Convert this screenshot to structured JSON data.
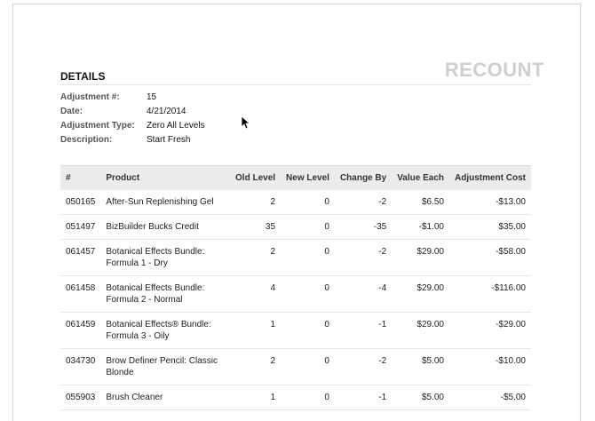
{
  "doc_type": "RECOUNT",
  "details": {
    "heading": "DETAILS",
    "fields": [
      {
        "label": "Adjustment #:",
        "value": "15"
      },
      {
        "label": "Date:",
        "value": "4/21/2014"
      },
      {
        "label": "Adjustment Type:",
        "value": "Zero All Levels"
      },
      {
        "label": "Description:",
        "value": "Start Fresh"
      }
    ]
  },
  "table": {
    "headers": [
      "#",
      "Product",
      "Old Level",
      "New Level",
      "Change By",
      "Value Each",
      "Adjustment Cost"
    ],
    "rows": [
      {
        "id": "050165",
        "product": "After-Sun Replenishing Gel",
        "old": "2",
        "new": "0",
        "change": "-2",
        "value": "$6.50",
        "cost": "-$13.00"
      },
      {
        "id": "051497",
        "product": "BizBuilder Bucks Credit",
        "old": "35",
        "new": "0",
        "change": "-35",
        "value": "-$1.00",
        "cost": "$35.00"
      },
      {
        "id": "061457",
        "product": "Botanical Effects Bundle: Formula 1 - Dry",
        "old": "2",
        "new": "0",
        "change": "-2",
        "value": "$29.00",
        "cost": "-$58.00"
      },
      {
        "id": "061458",
        "product": "Botanical Effects Bundle: Formula 2 - Normal",
        "old": "4",
        "new": "0",
        "change": "-4",
        "value": "$29.00",
        "cost": "-$116.00"
      },
      {
        "id": "061459",
        "product": "Botanical Effects® Bundle: Formula 3 - Oily",
        "old": "1",
        "new": "0",
        "change": "-1",
        "value": "$29.00",
        "cost": "-$29.00"
      },
      {
        "id": "034730",
        "product": "Brow Definer Pencil: Classic Blonde",
        "old": "2",
        "new": "0",
        "change": "-2",
        "value": "$5.00",
        "cost": "-$10.00"
      },
      {
        "id": "055903",
        "product": "Brush Cleaner",
        "old": "1",
        "new": "0",
        "change": "-1",
        "value": "$5.00",
        "cost": "-$5.00"
      }
    ]
  }
}
